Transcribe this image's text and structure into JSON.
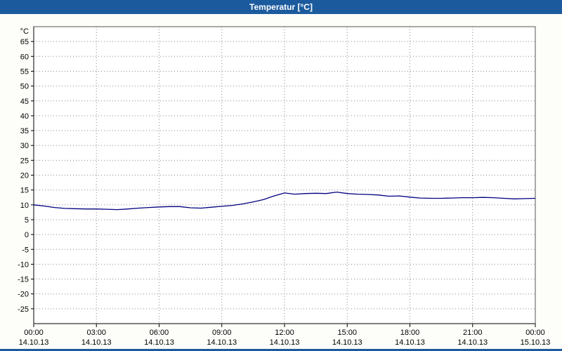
{
  "window": {
    "title": "Temperatur [°C]"
  },
  "colors": {
    "titlebar": "#1b5b9d",
    "bottom_strip": "#1b5b9d",
    "plot_background": "#ffffff",
    "page_background": "#fdfdfa",
    "grid": "#8a8a8a",
    "axis": "#000000",
    "plot_border": "#555555",
    "line": "#000080",
    "label_text": "#000000"
  },
  "chart_data": {
    "type": "line",
    "title": "Temperatur [°C]",
    "ylabel": "°C",
    "xlim": [
      0,
      24
    ],
    "ylim": [
      -30,
      70
    ],
    "grid": true,
    "y_ticks": [
      65,
      60,
      55,
      50,
      45,
      40,
      35,
      30,
      25,
      20,
      15,
      10,
      5,
      0,
      -5,
      -10,
      -15,
      -20,
      -25
    ],
    "x_ticks": [
      {
        "hour": 0,
        "time": "00:00",
        "date": "14.10.13"
      },
      {
        "hour": 3,
        "time": "03:00",
        "date": "14.10.13"
      },
      {
        "hour": 6,
        "time": "06:00",
        "date": "14.10.13"
      },
      {
        "hour": 9,
        "time": "09:00",
        "date": "14.10.13"
      },
      {
        "hour": 12,
        "time": "12:00",
        "date": "14.10.13"
      },
      {
        "hour": 15,
        "time": "15:00",
        "date": "14.10.13"
      },
      {
        "hour": 18,
        "time": "18:00",
        "date": "14.10.13"
      },
      {
        "hour": 21,
        "time": "21:00",
        "date": "14.10.13"
      },
      {
        "hour": 24,
        "time": "00:00",
        "date": "15.10.13"
      }
    ],
    "series": [
      {
        "name": "Temperatur",
        "color": "#000080",
        "x": [
          0,
          0.5,
          1,
          1.5,
          2,
          2.5,
          3,
          3.5,
          4,
          4.5,
          5,
          5.5,
          6,
          6.5,
          7,
          7.5,
          8,
          8.5,
          9,
          9.5,
          10,
          10.5,
          11,
          11.5,
          12,
          12.5,
          13,
          13.5,
          14,
          14.5,
          15,
          15.5,
          16,
          16.5,
          17,
          17.5,
          18,
          18.5,
          19,
          19.5,
          20,
          20.5,
          21,
          21.5,
          22,
          22.5,
          23,
          23.5,
          24
        ],
        "values": [
          10.0,
          9.6,
          9.1,
          8.8,
          8.7,
          8.6,
          8.6,
          8.5,
          8.4,
          8.6,
          8.9,
          9.1,
          9.3,
          9.4,
          9.4,
          9.0,
          8.9,
          9.2,
          9.5,
          9.8,
          10.3,
          11.0,
          11.8,
          13.0,
          14.0,
          13.6,
          13.8,
          13.9,
          13.8,
          14.3,
          13.8,
          13.6,
          13.5,
          13.3,
          12.9,
          13.0,
          12.6,
          12.3,
          12.2,
          12.2,
          12.3,
          12.4,
          12.4,
          12.5,
          12.4,
          12.2,
          12.0,
          12.1,
          12.2
        ]
      }
    ]
  }
}
